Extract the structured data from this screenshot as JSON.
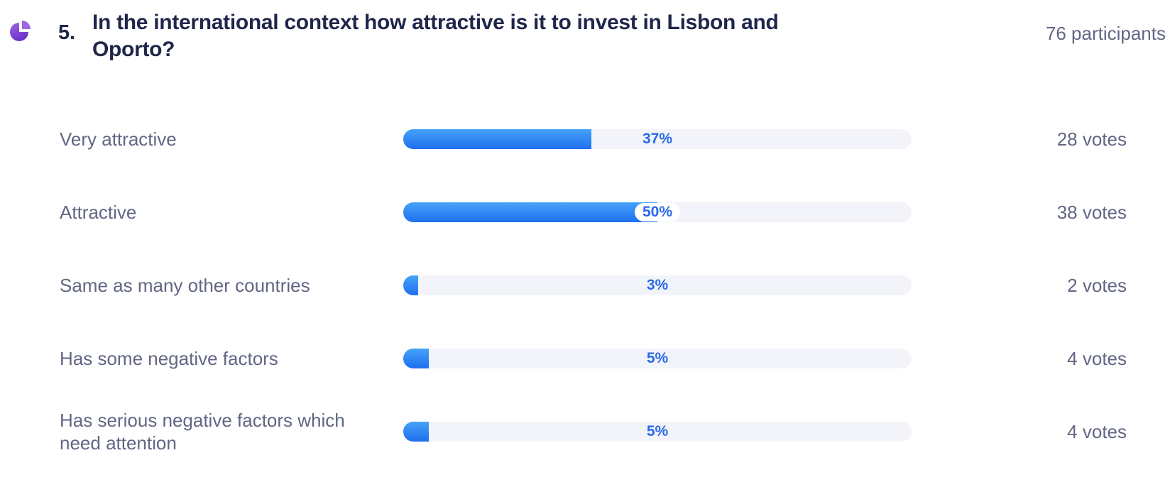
{
  "header": {
    "icon": "pie-chart-icon",
    "question_number": "5.",
    "question_title": "In the international context how attractive is it to invest in Lisbon and Oporto?",
    "participants_label": "76 participants"
  },
  "chart_data": {
    "type": "bar",
    "orientation": "horizontal",
    "title": "In the international context how attractive is it to invest in Lisbon and Oporto?",
    "categories": [
      "Very attractive",
      "Attractive",
      "Same as many other countries",
      "Has some negative factors",
      "Has serious negative factors which need attention"
    ],
    "values": [
      37,
      50,
      3,
      5,
      5
    ],
    "value_unit": "%",
    "votes": [
      28,
      38,
      2,
      4,
      4
    ],
    "total_participants": 76,
    "xlim": [
      0,
      100
    ],
    "legend": "none",
    "grid": "off"
  },
  "results": [
    {
      "label": "Very attractive",
      "percent": 37,
      "percent_label": "37%",
      "votes_label": "28 votes"
    },
    {
      "label": "Attractive",
      "percent": 50,
      "percent_label": "50%",
      "votes_label": "38 votes"
    },
    {
      "label": "Same as many other countries",
      "percent": 3,
      "percent_label": "3%",
      "votes_label": "2 votes"
    },
    {
      "label": "Has some negative factors",
      "percent": 5,
      "percent_label": "5%",
      "votes_label": "4 votes"
    },
    {
      "label": "Has serious negative factors which need attention",
      "percent": 5,
      "percent_label": "5%",
      "votes_label": "4 votes"
    }
  ],
  "colors": {
    "title_text": "#20264a",
    "muted_text": "#616684",
    "percent_text": "#2a6ae9",
    "bar_gradient_top": "#45a3f8",
    "bar_gradient_bottom": "#1f6fee",
    "bar_track": "#f2f4f9",
    "icon_purple_dark": "#6d33c9",
    "icon_purple_light": "#9a66e3"
  }
}
